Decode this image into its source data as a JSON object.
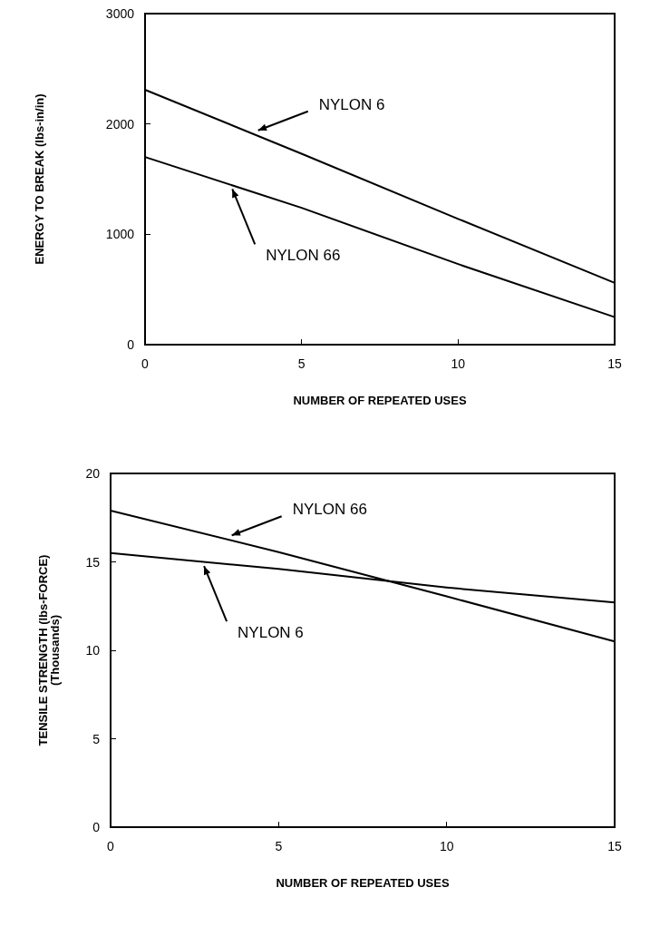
{
  "chart_data": [
    {
      "type": "line",
      "xlabel": "NUMBER OF REPEATED USES",
      "ylabel": "ENERGY TO BREAK (lbs-in/in)",
      "x": [
        0,
        5,
        10,
        15
      ],
      "xlim": [
        0,
        15
      ],
      "xticks": [
        0,
        5,
        10,
        15
      ],
      "ylim": [
        0,
        3000
      ],
      "yticks": [
        0,
        1000,
        2000,
        3000
      ],
      "grid": false,
      "legend": false,
      "marker": "none",
      "series": [
        {
          "name": "NYLON 6",
          "color": "#000000",
          "values": [
            2310,
            1730,
            1140,
            560
          ]
        },
        {
          "name": "NYLON 66",
          "color": "#000000",
          "values": [
            1700,
            1240,
            730,
            250
          ]
        }
      ]
    },
    {
      "type": "line",
      "xlabel": "NUMBER OF REPEATED USES",
      "ylabel": "TENSILE STRENGTH (lbs-FORCE)\n(Thousands)",
      "x": [
        0,
        5,
        10,
        15
      ],
      "xlim": [
        0,
        15
      ],
      "xticks": [
        0,
        5,
        10,
        15
      ],
      "ylim": [
        0,
        20
      ],
      "yticks": [
        0,
        5,
        10,
        15,
        20
      ],
      "grid": false,
      "legend": false,
      "marker": "none",
      "series": [
        {
          "name": "NYLON 66",
          "color": "#000000",
          "values": [
            17.9,
            15.55,
            13.05,
            10.5
          ]
        },
        {
          "name": "NYLON 6",
          "color": "#000000",
          "values": [
            15.5,
            14.6,
            13.55,
            12.7
          ]
        }
      ]
    }
  ]
}
